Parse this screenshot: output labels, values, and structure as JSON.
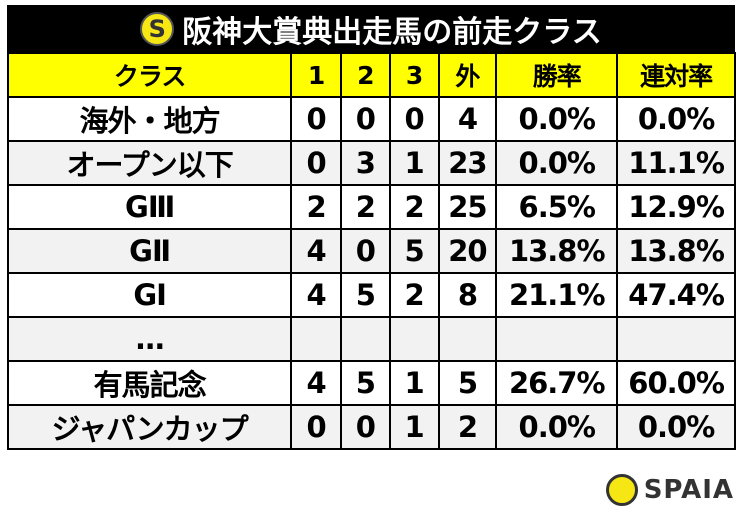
{
  "title": "阪神大賞典出走馬の前走クラス",
  "brand": "SPAIA",
  "colors": {
    "header_bg": "#ffff00",
    "title_bg": "#000000",
    "alt_row": "#f2f2f2",
    "logo": "#f5e614"
  },
  "table": {
    "headers": [
      "クラス",
      "1",
      "2",
      "3",
      "外",
      "勝率",
      "連対率"
    ],
    "rows": [
      [
        "海外・地方",
        "0",
        "0",
        "0",
        "4",
        "0.0%",
        "0.0%"
      ],
      [
        "オープン以下",
        "0",
        "3",
        "1",
        "23",
        "0.0%",
        "11.1%"
      ],
      [
        "GⅢ",
        "2",
        "2",
        "2",
        "25",
        "6.5%",
        "12.9%"
      ],
      [
        "GⅡ",
        "4",
        "0",
        "5",
        "20",
        "13.8%",
        "13.8%"
      ],
      [
        "GⅠ",
        "4",
        "5",
        "2",
        "8",
        "21.1%",
        "47.4%"
      ],
      [
        "…",
        "",
        "",
        "",
        "",
        "",
        ""
      ],
      [
        "有馬記念",
        "4",
        "5",
        "1",
        "5",
        "26.7%",
        "60.0%"
      ],
      [
        "ジャパンカップ",
        "0",
        "0",
        "1",
        "2",
        "0.0%",
        "0.0%"
      ]
    ]
  }
}
